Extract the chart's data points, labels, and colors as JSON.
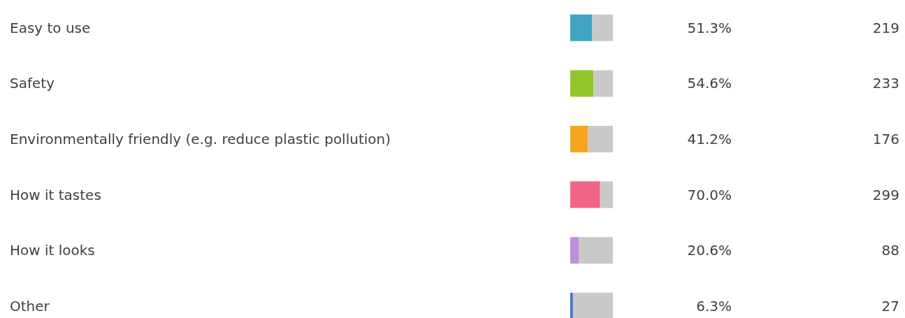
{
  "chart_data": {
    "type": "bar",
    "orientation": "horizontal",
    "stacked": true,
    "categories": [
      "Easy to use",
      "Safety",
      "Environmentally friendly (e.g. reduce plastic pollution)",
      "How it tastes",
      "How it looks",
      "Other"
    ],
    "series": [
      {
        "colors": [
          "#3fa5c3",
          "#92c628",
          "#f5a51c",
          "#f06586",
          "#c08fda",
          "#4472c4"
        ],
        "values": [
          51.3,
          54.6,
          41.2,
          70.0,
          20.6,
          6.3
        ],
        "value_labels": [
          "51.3%",
          "54.6%",
          "41.2%",
          "70.0%",
          "20.6%",
          "6.3%"
        ]
      },
      {
        "color": "#c9c9c9",
        "values": [
          48.7,
          45.4,
          58.8,
          30.0,
          79.4,
          93.7
        ]
      }
    ],
    "xlim": [
      0,
      100
    ],
    "tick_labels": "y",
    "grid": false,
    "annotations": [
      "219",
      "233",
      "176",
      "299",
      "88",
      "27"
    ]
  }
}
